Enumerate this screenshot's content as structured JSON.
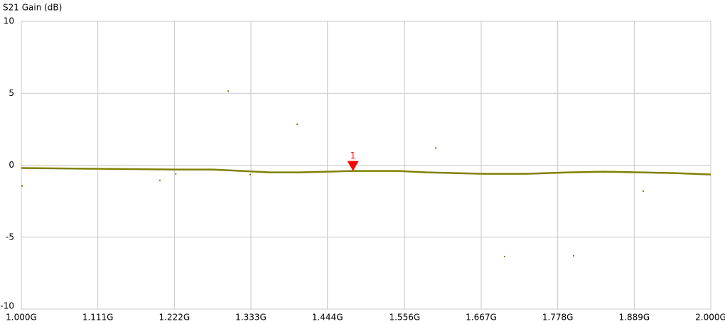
{
  "chart_data": {
    "type": "line",
    "y_label": "S21 Gain (dB)",
    "xlim": [
      1.0,
      2.0
    ],
    "xticks": [
      {
        "value": 1.0,
        "label": "1.000G"
      },
      {
        "value": 1.111,
        "label": "1.111G"
      },
      {
        "value": 1.222,
        "label": "1.222G"
      },
      {
        "value": 1.333,
        "label": "1.333G"
      },
      {
        "value": 1.444,
        "label": "1.444G"
      },
      {
        "value": 1.556,
        "label": "1.556G"
      },
      {
        "value": 1.667,
        "label": "1.667G"
      },
      {
        "value": 1.778,
        "label": "1.778G"
      },
      {
        "value": 1.889,
        "label": "1.889G"
      },
      {
        "value": 2.0,
        "label": "2.000G"
      }
    ],
    "ylim": [
      -10,
      10
    ],
    "yticks": [
      10,
      5,
      0,
      -5,
      -10
    ],
    "grid": true,
    "series": [
      {
        "style": "line",
        "color": "#808000",
        "x": [
          1.0,
          1.113,
          1.227,
          1.278,
          1.32,
          1.361,
          1.402,
          1.443,
          1.481,
          1.546,
          1.588,
          1.67,
          1.732,
          1.794,
          1.845,
          1.897,
          1.948,
          2.0
        ],
        "values": [
          -0.2,
          -0.25,
          -0.3,
          -0.3,
          -0.4,
          -0.5,
          -0.5,
          -0.45,
          -0.4,
          -0.4,
          -0.5,
          -0.6,
          -0.6,
          -0.5,
          -0.45,
          -0.5,
          -0.55,
          -0.65
        ]
      },
      {
        "style": "dots",
        "color": "#808000",
        "x": [
          1.3,
          1.4,
          1.601,
          1.001,
          1.201,
          1.224,
          1.332,
          1.701,
          1.801,
          1.902
        ],
        "values": [
          5.15,
          2.85,
          1.2,
          -1.45,
          -1.05,
          -0.6,
          -0.65,
          -6.35,
          -6.3,
          -1.8
        ]
      }
    ],
    "markers": [
      {
        "label": "1",
        "x": 1.481,
        "y": -0.4,
        "color": "#ff0000"
      }
    ]
  }
}
